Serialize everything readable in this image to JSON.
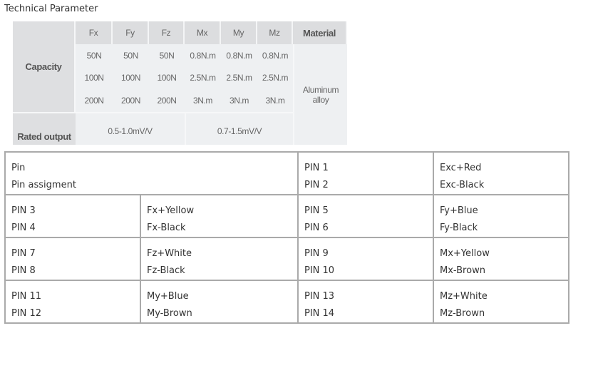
{
  "title": "Technical Parameter",
  "spec": {
    "headers": [
      "Fx",
      "Fy",
      "Fz",
      "Mx",
      "My",
      "Mz",
      "Material"
    ],
    "capacity_label": "Capacity",
    "rows": [
      [
        "50N",
        "50N",
        "50N",
        "0.8N.m",
        "0.8N.m",
        "0.8N.m"
      ],
      [
        "100N",
        "100N",
        "100N",
        "2.5N.m",
        "2.5N.m",
        "2.5N.m"
      ],
      [
        "200N",
        "200N",
        "200N",
        "3N.m",
        "3N.m",
        "3N.m"
      ]
    ],
    "material": "Aluminum alloy",
    "rated_label": "Rated output",
    "rated_force": "0.5-1.0mV/V",
    "rated_moment": "0.7-1.5mV/V"
  },
  "pins": {
    "header": {
      "a": "Pin",
      "b": "Pin assigment",
      "c1": "PIN 1",
      "c2": "PIN 2",
      "d1": "Exc+Red",
      "d2": "Exc-Black"
    },
    "rows": [
      {
        "p1": "PIN 3",
        "p2": "PIN 4",
        "w1": "Fx+Yellow",
        "w2": "Fx-Black",
        "p3": "PIN 5",
        "p4": "PIN 6",
        "w3": "Fy+Blue",
        "w4": "Fy-Black"
      },
      {
        "p1": "PIN 7",
        "p2": "PIN 8",
        "w1": "Fz+White",
        "w2": "Fz-Black",
        "p3": "PIN 9",
        "p4": "PIN 10",
        "w3": "Mx+Yellow",
        "w4": "Mx-Brown"
      },
      {
        "p1": "PIN 11",
        "p2": "PIN 12",
        "w1": "My+Blue",
        "w2": "My-Brown",
        "p3": "PIN 13",
        "p4": "PIN 14",
        "w3": "Mz+White",
        "w4": "Mz-Brown"
      }
    ]
  }
}
